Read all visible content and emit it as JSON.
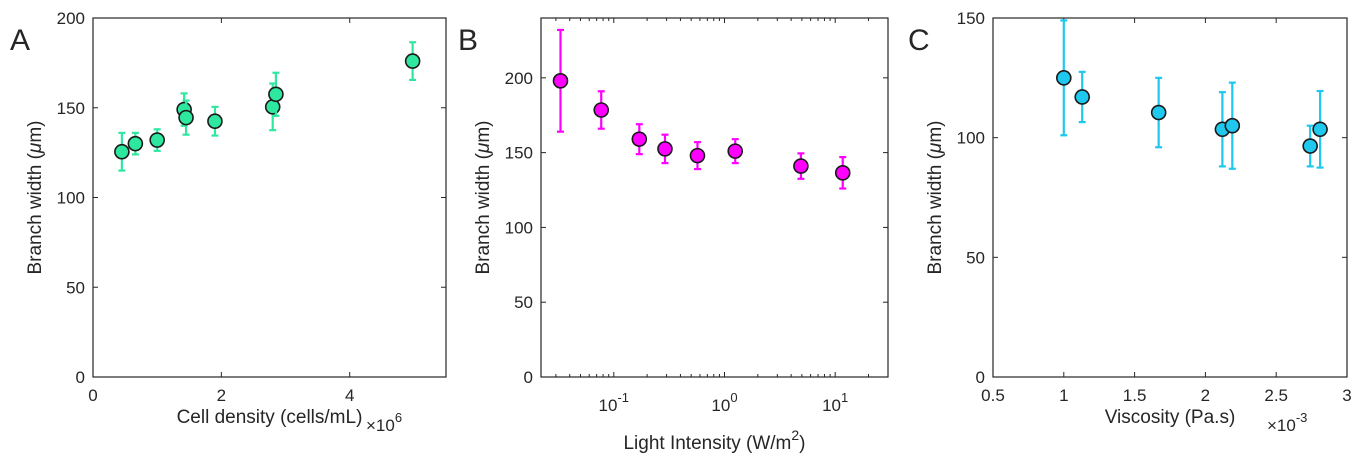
{
  "chart_data": [
    {
      "type": "scatter",
      "panel_label": "A",
      "xlabel": "Cell density (cells/mL)",
      "x_multiplier": "×10",
      "x_multiplier_exp": "6",
      "ylabel_prefix": "Branch width (",
      "ylabel_mu": "μ",
      "ylabel_suffix": "m)",
      "xscale": "linear",
      "xlim": [
        0,
        5.5
      ],
      "ylim": [
        0,
        200
      ],
      "xticks": [
        0,
        2,
        4
      ],
      "xtick_labels": [
        "0",
        "2",
        "4"
      ],
      "yticks": [
        0,
        50,
        100,
        150,
        200
      ],
      "ytick_labels": [
        "0",
        "50",
        "100",
        "150",
        "200"
      ],
      "color": "#2ee8a0",
      "grid": false,
      "points": [
        {
          "x": 0.45,
          "y": 125.5,
          "err": 10.5
        },
        {
          "x": 0.66,
          "y": 130,
          "err": 6
        },
        {
          "x": 1.0,
          "y": 132,
          "err": 6
        },
        {
          "x": 1.42,
          "y": 149,
          "err": 9
        },
        {
          "x": 1.45,
          "y": 144.5,
          "err": 9.5
        },
        {
          "x": 1.9,
          "y": 142.5,
          "err": 8
        },
        {
          "x": 2.8,
          "y": 150.5,
          "err": 13
        },
        {
          "x": 2.85,
          "y": 157.5,
          "err": 12
        },
        {
          "x": 4.98,
          "y": 176,
          "err": 10.5
        }
      ]
    },
    {
      "type": "scatter",
      "panel_label": "B",
      "xlabel": "Light Intensity (W/m",
      "xlabel_sup": "2",
      "xlabel_close": ")",
      "ylabel_prefix": "Branch width (",
      "ylabel_mu": "μ",
      "ylabel_suffix": "m)",
      "xscale": "log",
      "xlim": [
        0.022,
        30
      ],
      "ylim": [
        0,
        240
      ],
      "xticks": [
        0.1,
        1,
        10
      ],
      "xtick_labels": [
        [
          "10",
          "-1"
        ],
        [
          "10",
          "0"
        ],
        [
          "10",
          "1"
        ]
      ],
      "yticks": [
        0,
        50,
        100,
        150,
        200
      ],
      "ytick_labels": [
        "0",
        "50",
        "100",
        "150",
        "200"
      ],
      "color": "#ff00ff",
      "grid": false,
      "points": [
        {
          "x": 0.033,
          "y": 198,
          "err": 34
        },
        {
          "x": 0.077,
          "y": 178.5,
          "err": 12.5
        },
        {
          "x": 0.17,
          "y": 159,
          "err": 10
        },
        {
          "x": 0.29,
          "y": 152.5,
          "err": 9.5
        },
        {
          "x": 0.57,
          "y": 148,
          "err": 9
        },
        {
          "x": 1.25,
          "y": 151,
          "err": 8
        },
        {
          "x": 4.9,
          "y": 141,
          "err": 8.5
        },
        {
          "x": 11.7,
          "y": 136.5,
          "err": 10.5
        }
      ]
    },
    {
      "type": "scatter",
      "panel_label": "C",
      "xlabel": "Viscosity (Pa.s)",
      "x_multiplier": "×10",
      "x_multiplier_exp": "-3",
      "ylabel_prefix": "Branch width (",
      "ylabel_mu": "μ",
      "ylabel_suffix": "m)",
      "xscale": "linear",
      "xlim": [
        0.5,
        3
      ],
      "ylim": [
        0,
        150
      ],
      "xticks": [
        0.5,
        1,
        1.5,
        2,
        2.5,
        3
      ],
      "xtick_labels": [
        "0.5",
        "1",
        "1.5",
        "2",
        "2.5",
        "3"
      ],
      "yticks": [
        0,
        50,
        100,
        150
      ],
      "ytick_labels": [
        "0",
        "50",
        "100",
        "150"
      ],
      "color": "#1ec8ee",
      "grid": false,
      "points": [
        {
          "x": 1.0,
          "y": 125,
          "err": 24
        },
        {
          "x": 1.13,
          "y": 117,
          "err": 10.5
        },
        {
          "x": 1.67,
          "y": 110.5,
          "err": 14.5
        },
        {
          "x": 2.12,
          "y": 103.5,
          "err": 15.5
        },
        {
          "x": 2.19,
          "y": 105,
          "err": 18
        },
        {
          "x": 2.74,
          "y": 96.5,
          "err": 8.5
        },
        {
          "x": 2.81,
          "y": 103.5,
          "err": 16
        }
      ]
    }
  ]
}
